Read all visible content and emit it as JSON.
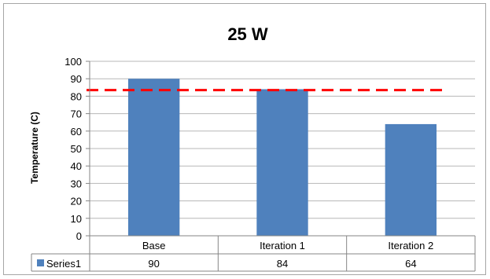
{
  "chart_data": {
    "type": "bar",
    "title": "25 W",
    "ylabel": "Temperature (C)",
    "xlabel": "",
    "categories": [
      "Base",
      "Iteration 1",
      "Iteration 2"
    ],
    "series": [
      {
        "name": "Series1",
        "values": [
          90,
          84,
          64
        ],
        "color": "#4f81bd"
      }
    ],
    "ylim": [
      0,
      100
    ],
    "ytick_step": 10,
    "grid": true,
    "reference_line": {
      "value": 83.5,
      "color": "#ff0000",
      "style": "dashed"
    },
    "legend": "data-table"
  }
}
